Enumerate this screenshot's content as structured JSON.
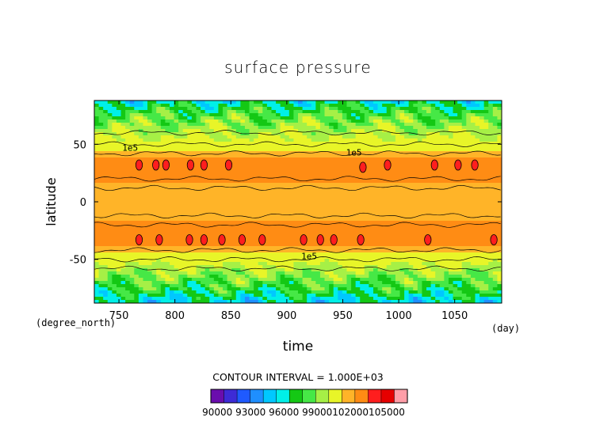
{
  "chart_data": {
    "type": "heatmap",
    "title": "surface pressure",
    "xlabel": "time",
    "ylabel": "latitude",
    "x_unit": "(day)",
    "y_unit": "(degree_north)",
    "xlim": [
      728,
      1092
    ],
    "ylim": [
      -88,
      88
    ],
    "x_ticks": [
      750,
      800,
      850,
      900,
      950,
      1000,
      1050
    ],
    "y_ticks": [
      50,
      0,
      -50
    ],
    "contour_interval_text": "CONTOUR INTERVAL = 1.000E+03",
    "contour_labels": [
      {
        "text": "1e5",
        "x": 760,
        "y": 47
      },
      {
        "text": "1e5",
        "x": 960,
        "y": 43
      },
      {
        "text": "1e5",
        "x": 920,
        "y": -47
      }
    ],
    "colorbar": {
      "levels": [
        90000,
        91000,
        92000,
        93000,
        94000,
        95000,
        96000,
        97000,
        98000,
        99000,
        100000,
        101000,
        102000,
        103000,
        104000,
        105000
      ],
      "tick_labels": [
        "90000",
        "93000",
        "96000",
        "99000",
        "102000",
        "105000"
      ],
      "tick_text": "90000 93000 96000 99000102000105000",
      "colors": [
        "#6a0dad",
        "#3d2bd6",
        "#1f5aff",
        "#1f8fff",
        "#00c8ff",
        "#00f0e8",
        "#14c814",
        "#46e846",
        "#a6f046",
        "#e8f528",
        "#ffb428",
        "#ff8c14",
        "#ff1e1e",
        "#e60000",
        "#ff9ea8"
      ]
    },
    "latitude_profile": [
      {
        "lat": 88,
        "value": 95500
      },
      {
        "lat": 75,
        "value": 97500
      },
      {
        "lat": 62,
        "value": 98600
      },
      {
        "lat": 50,
        "value": 99500
      },
      {
        "lat": 44,
        "value": 100100
      },
      {
        "lat": 37,
        "value": 101400
      },
      {
        "lat": 30,
        "value": 101600
      },
      {
        "lat": 20,
        "value": 101300
      },
      {
        "lat": 12,
        "value": 100800
      },
      {
        "lat": 0,
        "value": 100400
      },
      {
        "lat": -12,
        "value": 100800
      },
      {
        "lat": -20,
        "value": 101300
      },
      {
        "lat": -30,
        "value": 101700
      },
      {
        "lat": -37,
        "value": 101500
      },
      {
        "lat": -44,
        "value": 100100
      },
      {
        "lat": -52,
        "value": 99300
      },
      {
        "lat": -62,
        "value": 98300
      },
      {
        "lat": -75,
        "value": 97000
      },
      {
        "lat": -88,
        "value": 95000
      }
    ],
    "high_pressure_cells": [
      {
        "time": 768,
        "lat": 32
      },
      {
        "time": 783,
        "lat": 32
      },
      {
        "time": 792,
        "lat": 32
      },
      {
        "time": 814,
        "lat": 32
      },
      {
        "time": 826,
        "lat": 32
      },
      {
        "time": 848,
        "lat": 32
      },
      {
        "time": 968,
        "lat": 30
      },
      {
        "time": 990,
        "lat": 32
      },
      {
        "time": 1032,
        "lat": 32
      },
      {
        "time": 1053,
        "lat": 32
      },
      {
        "time": 1068,
        "lat": 32
      },
      {
        "time": 768,
        "lat": -33
      },
      {
        "time": 786,
        "lat": -33
      },
      {
        "time": 813,
        "lat": -33
      },
      {
        "time": 826,
        "lat": -33
      },
      {
        "time": 842,
        "lat": -33
      },
      {
        "time": 860,
        "lat": -33
      },
      {
        "time": 878,
        "lat": -33
      },
      {
        "time": 915,
        "lat": -33
      },
      {
        "time": 930,
        "lat": -33
      },
      {
        "time": 942,
        "lat": -33
      },
      {
        "time": 966,
        "lat": -33
      },
      {
        "time": 1026,
        "lat": -33
      },
      {
        "time": 1085,
        "lat": -33
      }
    ]
  }
}
